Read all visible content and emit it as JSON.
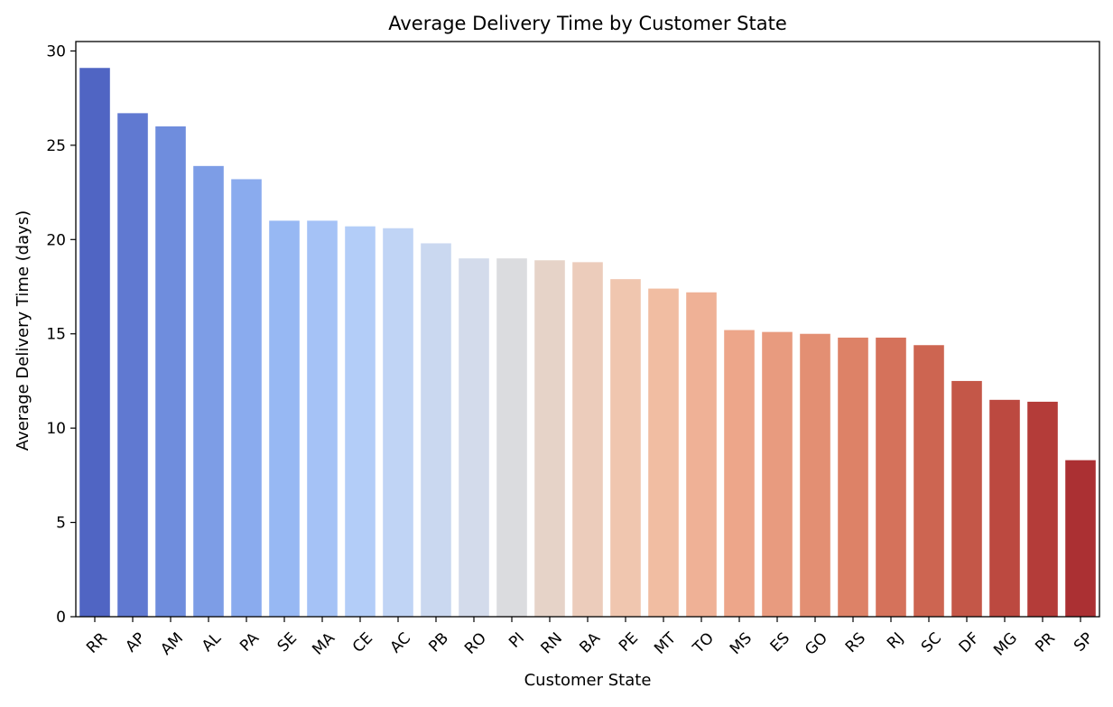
{
  "chart_data": {
    "type": "bar",
    "title": "Average Delivery Time by Customer State",
    "xlabel": "Customer State",
    "ylabel": "Average Delivery Time (days)",
    "ylim": [
      0,
      30.5
    ],
    "yticks": [
      0,
      5,
      10,
      15,
      20,
      25,
      30
    ],
    "grid": false,
    "legend": "none",
    "categories": [
      "RR",
      "AP",
      "AM",
      "AL",
      "PA",
      "SE",
      "MA",
      "CE",
      "AC",
      "PB",
      "RO",
      "PI",
      "RN",
      "BA",
      "PE",
      "MT",
      "TO",
      "MS",
      "ES",
      "GO",
      "RS",
      "RJ",
      "SC",
      "DF",
      "MG",
      "PR",
      "SP"
    ],
    "values": [
      29.1,
      26.7,
      26.0,
      23.9,
      23.2,
      21.0,
      21.0,
      20.7,
      20.6,
      19.8,
      19.0,
      19.0,
      18.9,
      18.8,
      17.9,
      17.4,
      17.2,
      15.2,
      15.1,
      15.0,
      14.8,
      14.8,
      14.4,
      12.5,
      11.5,
      11.4,
      8.3
    ],
    "colors": [
      "#5065c3",
      "#6079d1",
      "#6f8ddd",
      "#7d9de6",
      "#8aabee",
      "#97b8f3",
      "#a5c2f6",
      "#b3cdf8",
      "#c0d4f5",
      "#cad8f0",
      "#d3dbeb",
      "#dbdcdf",
      "#e6d3c8",
      "#ecccbb",
      "#f0c6af",
      "#f1bda2",
      "#efb196",
      "#eda68a",
      "#e89b7f",
      "#e38f73",
      "#dd8267",
      "#d5725b",
      "#cd6551",
      "#c45748",
      "#bc4940",
      "#b43c39",
      "#ab3033"
    ],
    "colormap": "coolwarm"
  }
}
